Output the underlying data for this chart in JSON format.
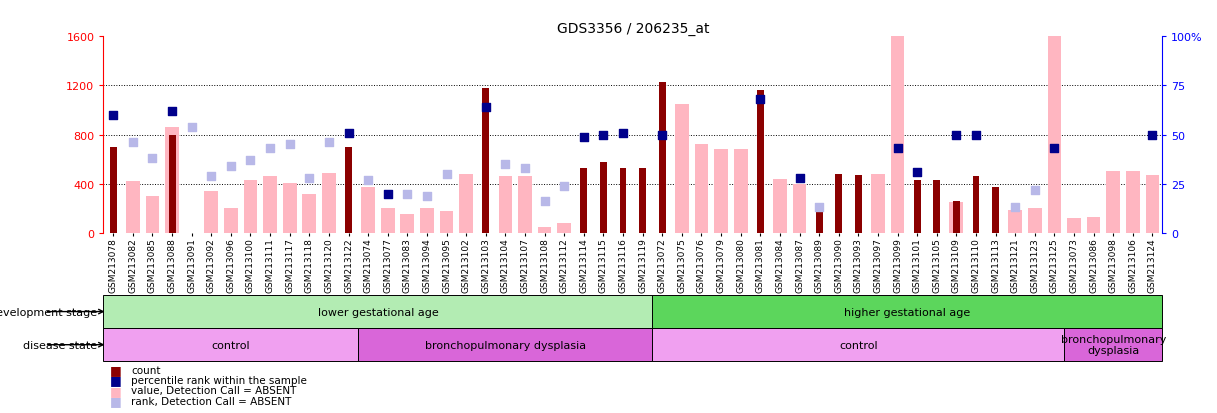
{
  "title": "GDS3356 / 206235_at",
  "samples": [
    "GSM213078",
    "GSM213082",
    "GSM213085",
    "GSM213088",
    "GSM213091",
    "GSM213092",
    "GSM213096",
    "GSM213100",
    "GSM213111",
    "GSM213117",
    "GSM213118",
    "GSM213120",
    "GSM213122",
    "GSM213074",
    "GSM213077",
    "GSM213083",
    "GSM213094",
    "GSM213095",
    "GSM213102",
    "GSM213103",
    "GSM213104",
    "GSM213107",
    "GSM213108",
    "GSM213112",
    "GSM213114",
    "GSM213115",
    "GSM213116",
    "GSM213119",
    "GSM213072",
    "GSM213075",
    "GSM213076",
    "GSM213079",
    "GSM213080",
    "GSM213081",
    "GSM213084",
    "GSM213087",
    "GSM213089",
    "GSM213090",
    "GSM213093",
    "GSM213097",
    "GSM213099",
    "GSM213101",
    "GSM213105",
    "GSM213109",
    "GSM213110",
    "GSM213113",
    "GSM213121",
    "GSM213123",
    "GSM213125",
    "GSM213073",
    "GSM213086",
    "GSM213098",
    "GSM213106",
    "GSM213124"
  ],
  "count": [
    700,
    0,
    0,
    800,
    0,
    0,
    0,
    0,
    0,
    0,
    0,
    0,
    700,
    0,
    0,
    0,
    0,
    0,
    0,
    1180,
    0,
    0,
    0,
    0,
    530,
    580,
    530,
    530,
    1230,
    0,
    0,
    0,
    0,
    1160,
    0,
    0,
    180,
    480,
    470,
    0,
    0,
    430,
    430,
    260,
    460,
    370,
    0,
    0,
    0,
    0,
    0,
    0,
    0,
    0
  ],
  "value_absent": [
    0,
    420,
    300,
    860,
    0,
    340,
    200,
    430,
    460,
    410,
    320,
    490,
    0,
    370,
    200,
    150,
    200,
    180,
    480,
    0,
    460,
    460,
    50,
    80,
    0,
    0,
    0,
    0,
    0,
    1050,
    720,
    680,
    680,
    0,
    440,
    400,
    0,
    0,
    0,
    480,
    1600,
    0,
    0,
    250,
    0,
    0,
    190,
    200,
    1600,
    120,
    130,
    500,
    500,
    470
  ],
  "rank_percentile_pct": [
    60,
    null,
    null,
    62,
    null,
    null,
    null,
    null,
    null,
    null,
    null,
    null,
    51,
    null,
    20,
    null,
    null,
    null,
    null,
    64,
    null,
    null,
    null,
    null,
    49,
    50,
    51,
    null,
    50,
    null,
    null,
    null,
    null,
    68,
    null,
    28,
    null,
    null,
    null,
    null,
    43,
    31,
    null,
    50,
    50,
    null,
    null,
    null,
    43,
    null,
    null,
    null,
    null,
    50
  ],
  "rank_absent_pct": [
    null,
    46,
    38,
    null,
    54,
    29,
    34,
    37,
    43,
    45,
    28,
    46,
    null,
    27,
    null,
    20,
    19,
    30,
    null,
    null,
    35,
    33,
    16,
    24,
    null,
    null,
    null,
    null,
    null,
    null,
    null,
    null,
    null,
    null,
    null,
    null,
    13,
    null,
    null,
    null,
    null,
    null,
    null,
    null,
    null,
    null,
    13,
    22,
    null,
    null,
    null,
    null,
    null,
    null
  ],
  "dev_stage_groups": [
    {
      "label": "lower gestational age",
      "start": 0,
      "end": 27,
      "color": "#b3ecb3"
    },
    {
      "label": "higher gestational age",
      "start": 28,
      "end": 53,
      "color": "#5cd65c"
    }
  ],
  "disease_groups": [
    {
      "label": "control",
      "start": 0,
      "end": 12,
      "color": "#f0a0f0"
    },
    {
      "label": "bronchopulmonary dysplasia",
      "start": 13,
      "end": 27,
      "color": "#d966d9"
    },
    {
      "label": "control",
      "start": 28,
      "end": 48,
      "color": "#f0a0f0"
    },
    {
      "label": "bronchopulmonary\ndysplasia",
      "start": 49,
      "end": 53,
      "color": "#d966d9"
    }
  ],
  "color_count": "#8b0000",
  "color_rank": "#00008b",
  "color_value_absent": "#ffb6c1",
  "color_rank_absent": "#b8b8e8",
  "legend_items": [
    {
      "label": "count",
      "color": "#8b0000"
    },
    {
      "label": "percentile rank within the sample",
      "color": "#00008b"
    },
    {
      "label": "value, Detection Call = ABSENT",
      "color": "#ffb6c1"
    },
    {
      "label": "rank, Detection Call = ABSENT",
      "color": "#b8b8e8"
    }
  ],
  "dev_stage_label": "development stage",
  "disease_state_label": "disease state"
}
